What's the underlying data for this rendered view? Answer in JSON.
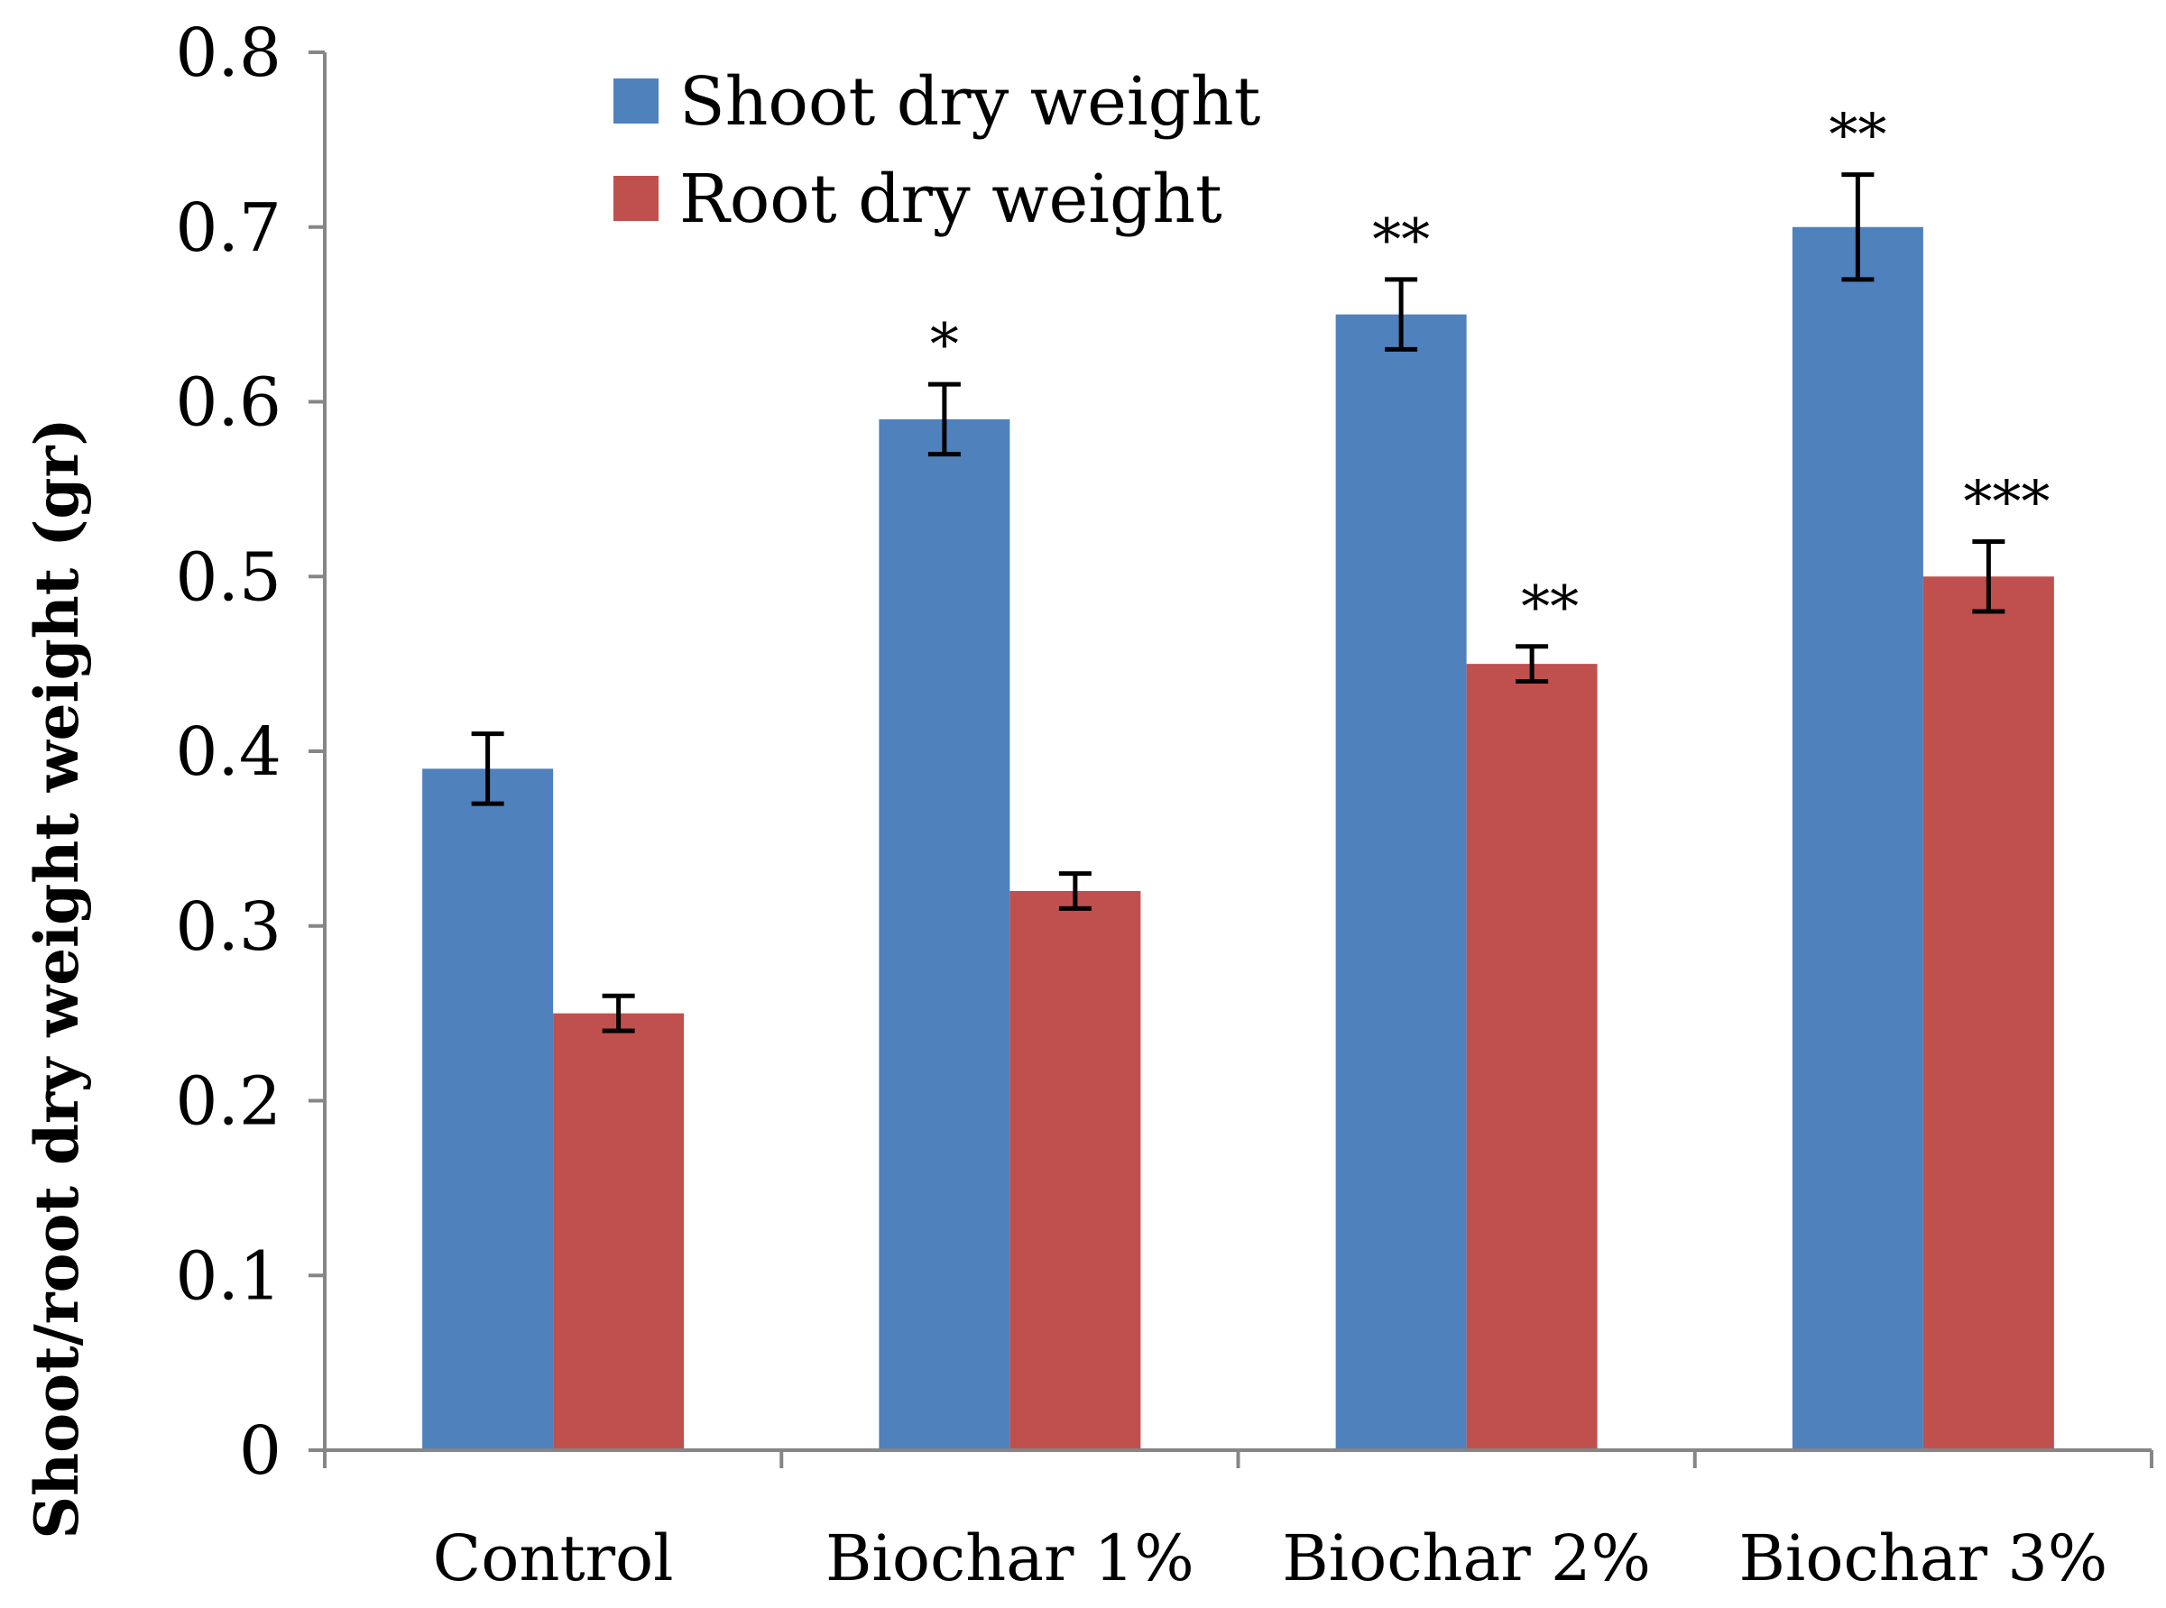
{
  "chart_data": {
    "type": "bar",
    "title": "",
    "xlabel": "",
    "ylabel": "Shoot/root dry weight weight (gr)",
    "ylim": [
      0,
      0.8
    ],
    "yticks": [
      "0",
      "0.1",
      "0.2",
      "0.3",
      "0.4",
      "0.5",
      "0.6",
      "0.7",
      "0.8"
    ],
    "categories": [
      "Control",
      "Biochar 1%",
      "Biochar 2%",
      "Biochar 3%"
    ],
    "legend_position": "top-center",
    "series": [
      {
        "name": "Shoot dry weight",
        "color": "#4F81BD",
        "values": [
          0.39,
          0.59,
          0.65,
          0.7
        ],
        "errors": [
          0.02,
          0.02,
          0.02,
          0.03
        ],
        "significance": [
          "",
          "*",
          "**",
          "**"
        ]
      },
      {
        "name": "Root dry weight",
        "color": "#C0504D",
        "values": [
          0.25,
          0.32,
          0.45,
          0.5
        ],
        "errors": [
          0.01,
          0.01,
          0.01,
          0.02
        ],
        "significance": [
          "",
          "",
          "**",
          "***"
        ]
      }
    ]
  }
}
